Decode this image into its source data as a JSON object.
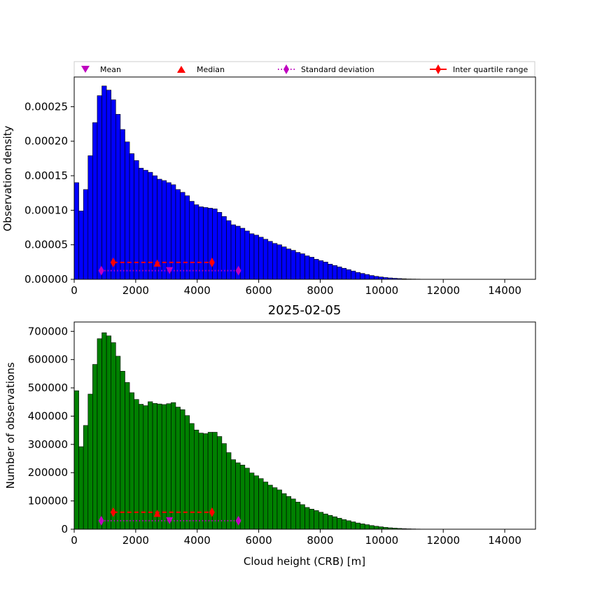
{
  "colors": {
    "density_bars": "#0000ff",
    "count_bars": "#008000",
    "bar_edge": "#000000",
    "mean": "#bf00bf",
    "median": "#ff0000",
    "stdev": "#bf00bf",
    "iqr": "#ff0000"
  },
  "legend": {
    "placement": "top",
    "mean_label": "Mean",
    "median_label": "Median",
    "stdev_label": "Standard deviation",
    "iqr_label": "Inter quartile range"
  },
  "chart_data": [
    {
      "type": "bar",
      "name": "density-histogram",
      "title": "",
      "xlabel": "",
      "ylabel": "Observation density",
      "xlim": [
        0,
        15000
      ],
      "ylim": [
        0,
        0.000293
      ],
      "xticks": [
        "0",
        "2000",
        "4000",
        "6000",
        "8000",
        "10000",
        "12000",
        "14000"
      ],
      "yticks": [
        "0.00000",
        "0.00005",
        "0.00010",
        "0.00015",
        "0.00020",
        "0.00025"
      ],
      "bin_start": 0,
      "bin_width": 150,
      "values": [
        0.00014,
        9.9e-05,
        0.00013,
        0.000179,
        0.000227,
        0.000266,
        0.00028,
        0.000274,
        0.00026,
        0.000239,
        0.000217,
        0.000199,
        0.000182,
        0.000172,
        0.000161,
        0.000158,
        0.000155,
        0.00015,
        0.000145,
        0.000143,
        0.00014,
        0.000137,
        0.00013,
        0.000126,
        0.000121,
        0.000113,
        0.000108,
        0.000105,
        0.000104,
        0.000103,
        0.000102,
        9.7e-05,
        9.1e-05,
        8.5e-05,
        7.9e-05,
        7.7e-05,
        7.4e-05,
        7e-05,
        6.6e-05,
        6.4e-05,
        6.1e-05,
        5.8e-05,
        5.5e-05,
        5.2e-05,
        5e-05,
        4.7e-05,
        4.4e-05,
        4.2e-05,
        3.9e-05,
        3.7e-05,
        3.4e-05,
        3.2e-05,
        2.9e-05,
        2.7e-05,
        2.5e-05,
        2.2e-05,
        2e-05,
        1.8e-05,
        1.6e-05,
        1.4e-05,
        1.2e-05,
        1e-05,
        8.5e-06,
        7e-06,
        5.5e-06,
        4.3e-06,
        3.4e-06,
        2.6e-06,
        2e-06,
        1.5e-06,
        1.1e-06,
        8e-07,
        5e-07,
        4e-07,
        3e-07,
        2e-07,
        1e-07,
        1e-07,
        0,
        0,
        0,
        0,
        0,
        0,
        0,
        0,
        0,
        0,
        0,
        0,
        0,
        0,
        0,
        0,
        0,
        0,
        0,
        0,
        0,
        0
      ],
      "markers": {
        "mean": {
          "x": 3100,
          "y": 1.25e-05
        },
        "median": {
          "x": 2700,
          "y": 2.35e-05
        },
        "stdev": {
          "x": [
            880,
            5340
          ],
          "y": 1.25e-05
        },
        "iqr": {
          "x": [
            1270,
            4480
          ],
          "y": 2.45e-05
        }
      }
    },
    {
      "type": "bar",
      "name": "count-histogram",
      "title": "2025-02-05",
      "xlabel": "Cloud height (CRB) [m]",
      "ylabel": "Number of observations",
      "xlim": [
        0,
        15000
      ],
      "ylim": [
        0,
        733000
      ],
      "xticks": [
        "0",
        "2000",
        "4000",
        "6000",
        "8000",
        "10000",
        "12000",
        "14000"
      ],
      "yticks": [
        "0",
        "100000",
        "200000",
        "300000",
        "400000",
        "500000",
        "600000",
        "700000"
      ],
      "bin_start": 0,
      "bin_width": 150,
      "values": [
        490000,
        292000,
        367000,
        478000,
        583000,
        674000,
        695000,
        684000,
        660000,
        612000,
        559000,
        519000,
        483000,
        459000,
        442000,
        437000,
        451000,
        445000,
        443000,
        441000,
        444000,
        448000,
        432000,
        423000,
        402000,
        374000,
        351000,
        340000,
        338000,
        343000,
        343000,
        328000,
        303000,
        271000,
        246000,
        235000,
        227000,
        216000,
        199000,
        189000,
        179000,
        167000,
        156000,
        147000,
        139000,
        126000,
        116000,
        107000,
        96000,
        87000,
        77000,
        71000,
        66000,
        60000,
        54000,
        49000,
        44000,
        39000,
        34000,
        30000,
        26000,
        22000,
        19000,
        16000,
        13000,
        10500,
        8500,
        6500,
        5000,
        3800,
        2800,
        2000,
        1400,
        1000,
        700,
        500,
        300,
        200,
        100,
        0,
        0,
        0,
        0,
        0,
        0,
        0,
        0,
        0,
        0,
        0,
        0,
        0,
        0,
        0,
        0,
        0,
        0,
        0,
        0,
        0
      ],
      "markers": {
        "mean": {
          "x": 3100,
          "y": 30000
        },
        "median": {
          "x": 2700,
          "y": 56000
        },
        "stdev": {
          "x": [
            880,
            5340
          ],
          "y": 30000
        },
        "iqr": {
          "x": [
            1270,
            4480
          ],
          "y": 60000
        }
      }
    }
  ]
}
